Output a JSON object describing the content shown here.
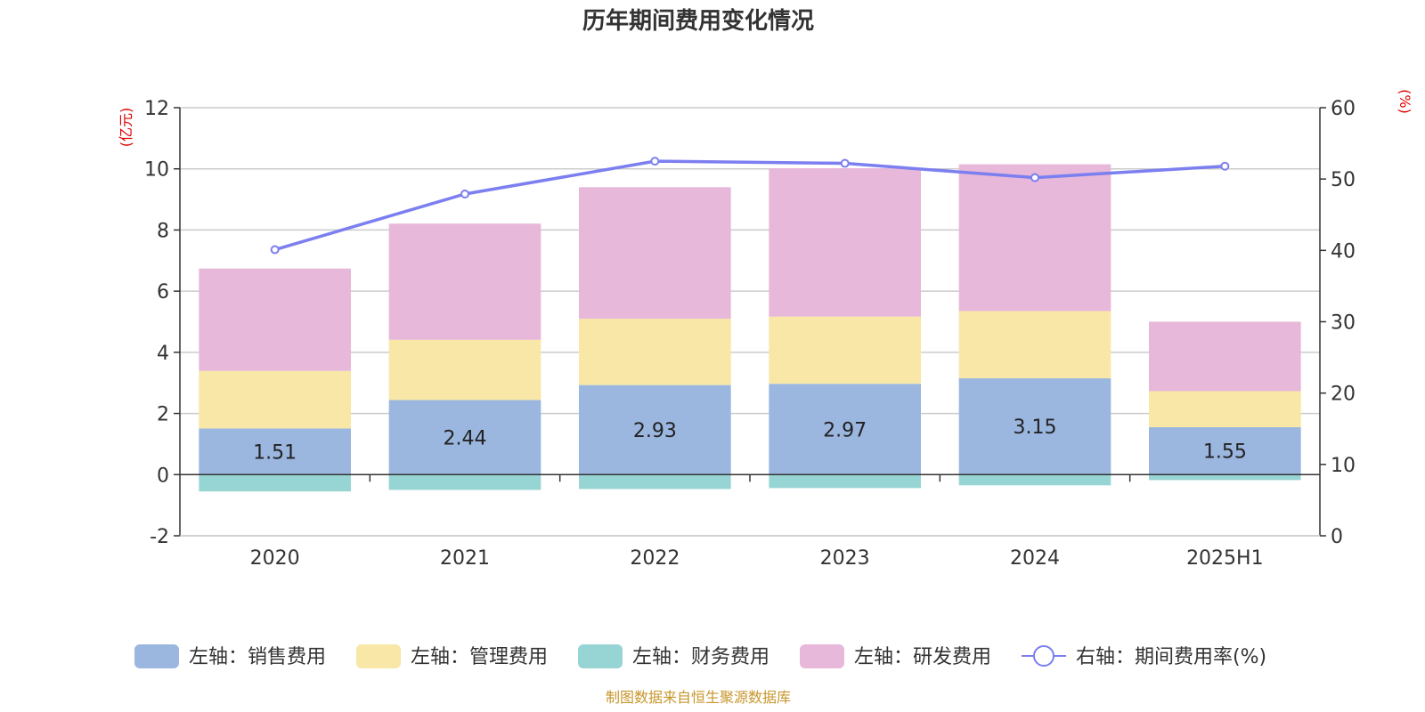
{
  "chart_data": {
    "type": "bar",
    "title": "历年期间费用变化情况",
    "categories": [
      "2020",
      "2021",
      "2022",
      "2023",
      "2024",
      "2025H1"
    ],
    "left_axis": {
      "unit_label": "(亿元)",
      "ylim": [
        -2,
        12
      ],
      "ticks": [
        -2,
        0,
        2,
        4,
        6,
        8,
        10,
        12
      ]
    },
    "right_axis": {
      "unit_label": "(%)",
      "ylim": [
        0,
        60
      ],
      "ticks": [
        0,
        10,
        20,
        30,
        40,
        50,
        60
      ]
    },
    "series": [
      {
        "name": "左轴：销售费用",
        "type": "bar",
        "stack": "positive",
        "axis": "left",
        "color": "#9bb7e0",
        "values": [
          1.51,
          2.44,
          2.93,
          2.97,
          3.15,
          1.55
        ],
        "labels": [
          "1.51",
          "2.44",
          "2.93",
          "2.97",
          "3.15",
          "1.55"
        ]
      },
      {
        "name": "左轴：管理费用",
        "type": "bar",
        "stack": "positive",
        "axis": "left",
        "color": "#f8e7a7",
        "values": [
          1.88,
          1.97,
          2.17,
          2.2,
          2.2,
          1.18
        ]
      },
      {
        "name": "左轴：财务费用",
        "type": "bar",
        "stack": "negative",
        "axis": "left",
        "color": "#97d5d4",
        "values": [
          -0.55,
          -0.5,
          -0.47,
          -0.44,
          -0.35,
          -0.18
        ]
      },
      {
        "name": "左轴：研发费用",
        "type": "bar",
        "stack": "positive",
        "axis": "left",
        "color": "#e7b8d9",
        "values": [
          3.35,
          3.8,
          4.3,
          4.85,
          4.8,
          2.27
        ]
      },
      {
        "name": "右轴：期间费用率(%)",
        "type": "line",
        "axis": "right",
        "color": "#7b7ff0",
        "values": [
          40.1,
          47.9,
          52.5,
          52.2,
          50.2,
          51.8
        ]
      }
    ],
    "legend_position": "bottom",
    "grid": true
  },
  "source_note": "制图数据来自恒生聚源数据库"
}
